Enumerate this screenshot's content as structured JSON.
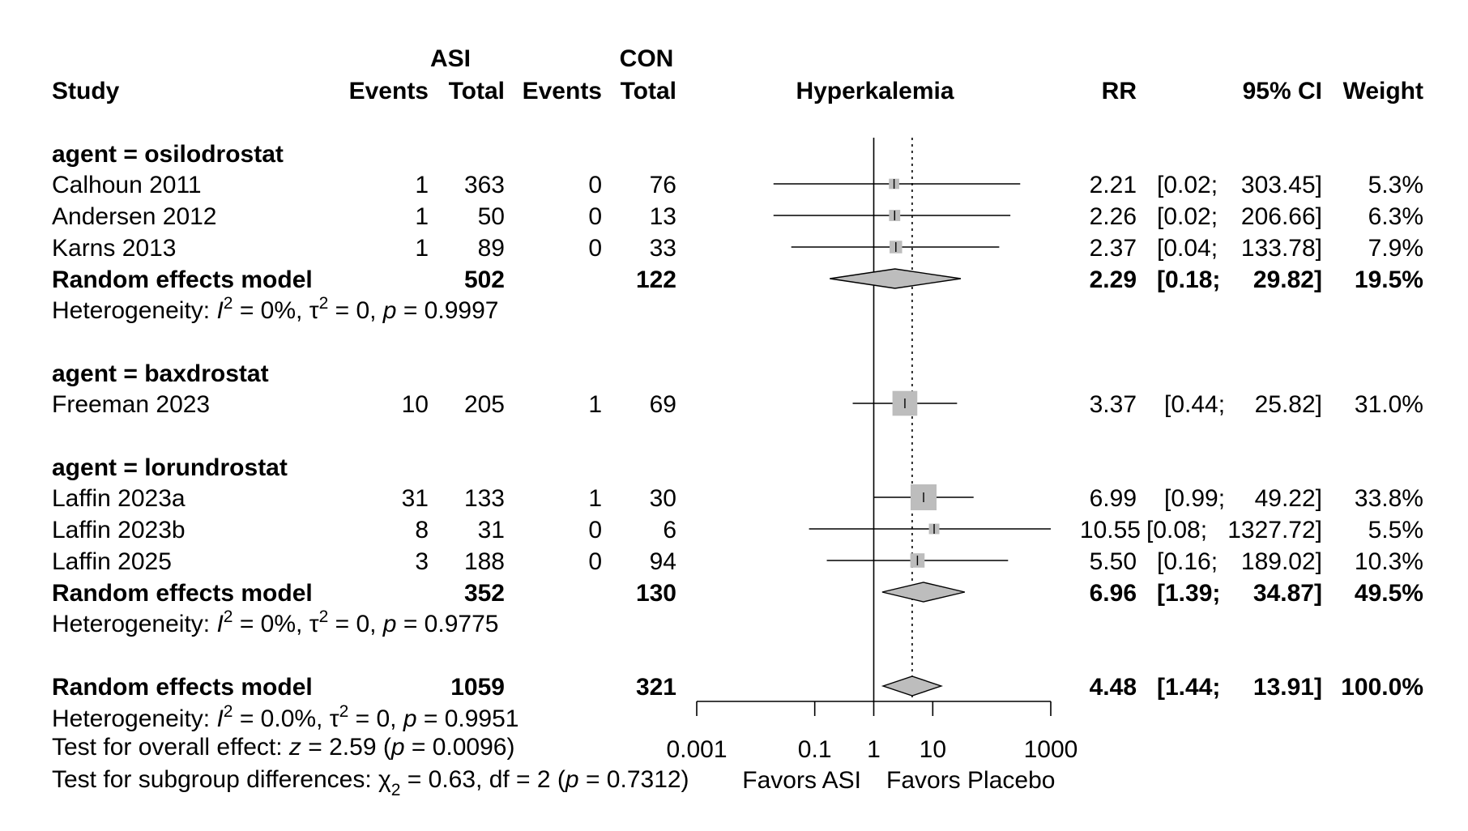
{
  "header": {
    "study": "Study",
    "asi_group": "ASI",
    "con_group": "CON",
    "events": "Events",
    "total": "Total",
    "outcome": "Hyperkalemia",
    "rr": "RR",
    "ci": "95% CI",
    "weight": "Weight"
  },
  "groups": [
    {
      "label": "agent = osilodrostat",
      "studies": [
        {
          "name": "Calhoun 2011",
          "asi_events": "1",
          "asi_total": "363",
          "con_events": "0",
          "con_total": "76",
          "rr": "2.21",
          "ci_low": "[0.02;",
          "ci_high": "303.45]",
          "weight": "5.3%"
        },
        {
          "name": "Andersen 2012",
          "asi_events": "1",
          "asi_total": "50",
          "con_events": "0",
          "con_total": "13",
          "rr": "2.26",
          "ci_low": "[0.02;",
          "ci_high": "206.66]",
          "weight": "6.3%"
        },
        {
          "name": "Karns 2013",
          "asi_events": "1",
          "asi_total": "89",
          "con_events": "0",
          "con_total": "33",
          "rr": "2.37",
          "ci_low": "[0.04;",
          "ci_high": "133.78]",
          "weight": "7.9%"
        }
      ],
      "model": {
        "label": "Random effects model",
        "asi_total": "502",
        "con_total": "122",
        "rr": "2.29",
        "ci_low": "[0.18;",
        "ci_high": "29.82]",
        "weight": "19.5%"
      },
      "heterogeneity": {
        "prefix": "Heterogeneity: ",
        "i2_value": " = 0%, ",
        "tau2_value": " = 0, ",
        "p_value": " = 0.9997"
      }
    },
    {
      "label": "agent = baxdrostat",
      "studies": [
        {
          "name": "Freeman 2023",
          "asi_events": "10",
          "asi_total": "205",
          "con_events": "1",
          "con_total": "69",
          "rr": "3.37",
          "ci_low": "[0.44;",
          "ci_high": "25.82]",
          "weight": "31.0%"
        }
      ]
    },
    {
      "label": "agent = lorundrostat",
      "studies": [
        {
          "name": "Laffin 2023a",
          "asi_events": "31",
          "asi_total": "133",
          "con_events": "1",
          "con_total": "30",
          "rr": "6.99",
          "ci_low": "[0.99;",
          "ci_high": "49.22]",
          "weight": "33.8%"
        },
        {
          "name": "Laffin 2023b",
          "asi_events": "8",
          "asi_total": "31",
          "con_events": "0",
          "con_total": "6",
          "rr": "10.55",
          "ci_low": "[0.08;",
          "ci_high": "1327.72]",
          "weight": "5.5%"
        },
        {
          "name": "Laffin 2025",
          "asi_events": "3",
          "asi_total": "188",
          "con_events": "0",
          "con_total": "94",
          "rr": "5.50",
          "ci_low": "[0.16;",
          "ci_high": "189.02]",
          "weight": "10.3%"
        }
      ],
      "model": {
        "label": "Random effects model",
        "asi_total": "352",
        "con_total": "130",
        "rr": "6.96",
        "ci_low": "[1.39;",
        "ci_high": "34.87]",
        "weight": "49.5%"
      },
      "heterogeneity": {
        "prefix": "Heterogeneity: ",
        "i2_value": " = 0%, ",
        "tau2_value": " = 0, ",
        "p_value": " = 0.9775"
      }
    }
  ],
  "overall": {
    "model": {
      "label": "Random effects model",
      "asi_total": "1059",
      "con_total": "321",
      "rr": "4.48",
      "ci_low": "[1.44;",
      "ci_high": "13.91]",
      "weight": "100.0%"
    },
    "heterogeneity": {
      "prefix": "Heterogeneity: ",
      "i2_value": " = 0.0%, ",
      "tau2_value": " = 0, ",
      "p_value": " = 0.9951"
    },
    "overall_effect": {
      "prefix": "Test for overall effect: ",
      "z_value": " = 2.59 (",
      "p_value": " = 0.0096)"
    },
    "subgroup_test": {
      "prefix": "Test for subgroup differences: ",
      "chi_value": " = 0.63, df = 2 (",
      "p_value": " = 0.7312)"
    }
  },
  "symbols": {
    "I": "I",
    "sup2": "2",
    "tau": "τ",
    "chi": "χ",
    "sub2": "2",
    "p": "p",
    "z": "z"
  },
  "axis": {
    "tick_labels": [
      "0.001",
      "0.1",
      "1",
      "10",
      "1000"
    ],
    "favors_left": "Favors ASI",
    "favors_right": "Favors Placebo"
  },
  "chart_data": {
    "type": "forest",
    "title": "Hyperkalemia",
    "xlabel": "Favors ASI    Favors Placebo",
    "scale": "log10",
    "xlim": [
      0.001,
      1000
    ],
    "ticks": [
      0.001,
      0.1,
      1,
      10,
      1000
    ],
    "null_line": 1,
    "pooled_reference": 4.48,
    "studies": [
      {
        "name": "Calhoun 2011",
        "rr": 2.21,
        "lo": 0.02,
        "hi": 303.45,
        "weight": 5.3
      },
      {
        "name": "Andersen 2012",
        "rr": 2.26,
        "lo": 0.02,
        "hi": 206.66,
        "weight": 6.3
      },
      {
        "name": "Karns 2013",
        "rr": 2.37,
        "lo": 0.04,
        "hi": 133.78,
        "weight": 7.9
      },
      {
        "name": "Freeman 2023",
        "rr": 3.37,
        "lo": 0.44,
        "hi": 25.82,
        "weight": 31.0
      },
      {
        "name": "Laffin 2023a",
        "rr": 6.99,
        "lo": 0.99,
        "hi": 49.22,
        "weight": 33.8
      },
      {
        "name": "Laffin 2023b",
        "rr": 10.55,
        "lo": 0.08,
        "hi": 1327.72,
        "weight": 5.5
      },
      {
        "name": "Laffin 2025",
        "rr": 5.5,
        "lo": 0.16,
        "hi": 189.02,
        "weight": 10.3
      }
    ],
    "summaries": [
      {
        "name": "osilodrostat",
        "rr": 2.29,
        "lo": 0.18,
        "hi": 29.82,
        "weight": 19.5
      },
      {
        "name": "lorundrostat",
        "rr": 6.96,
        "lo": 1.39,
        "hi": 34.87,
        "weight": 49.5
      },
      {
        "name": "overall",
        "rr": 4.48,
        "lo": 1.44,
        "hi": 13.91,
        "weight": 100.0
      }
    ]
  }
}
